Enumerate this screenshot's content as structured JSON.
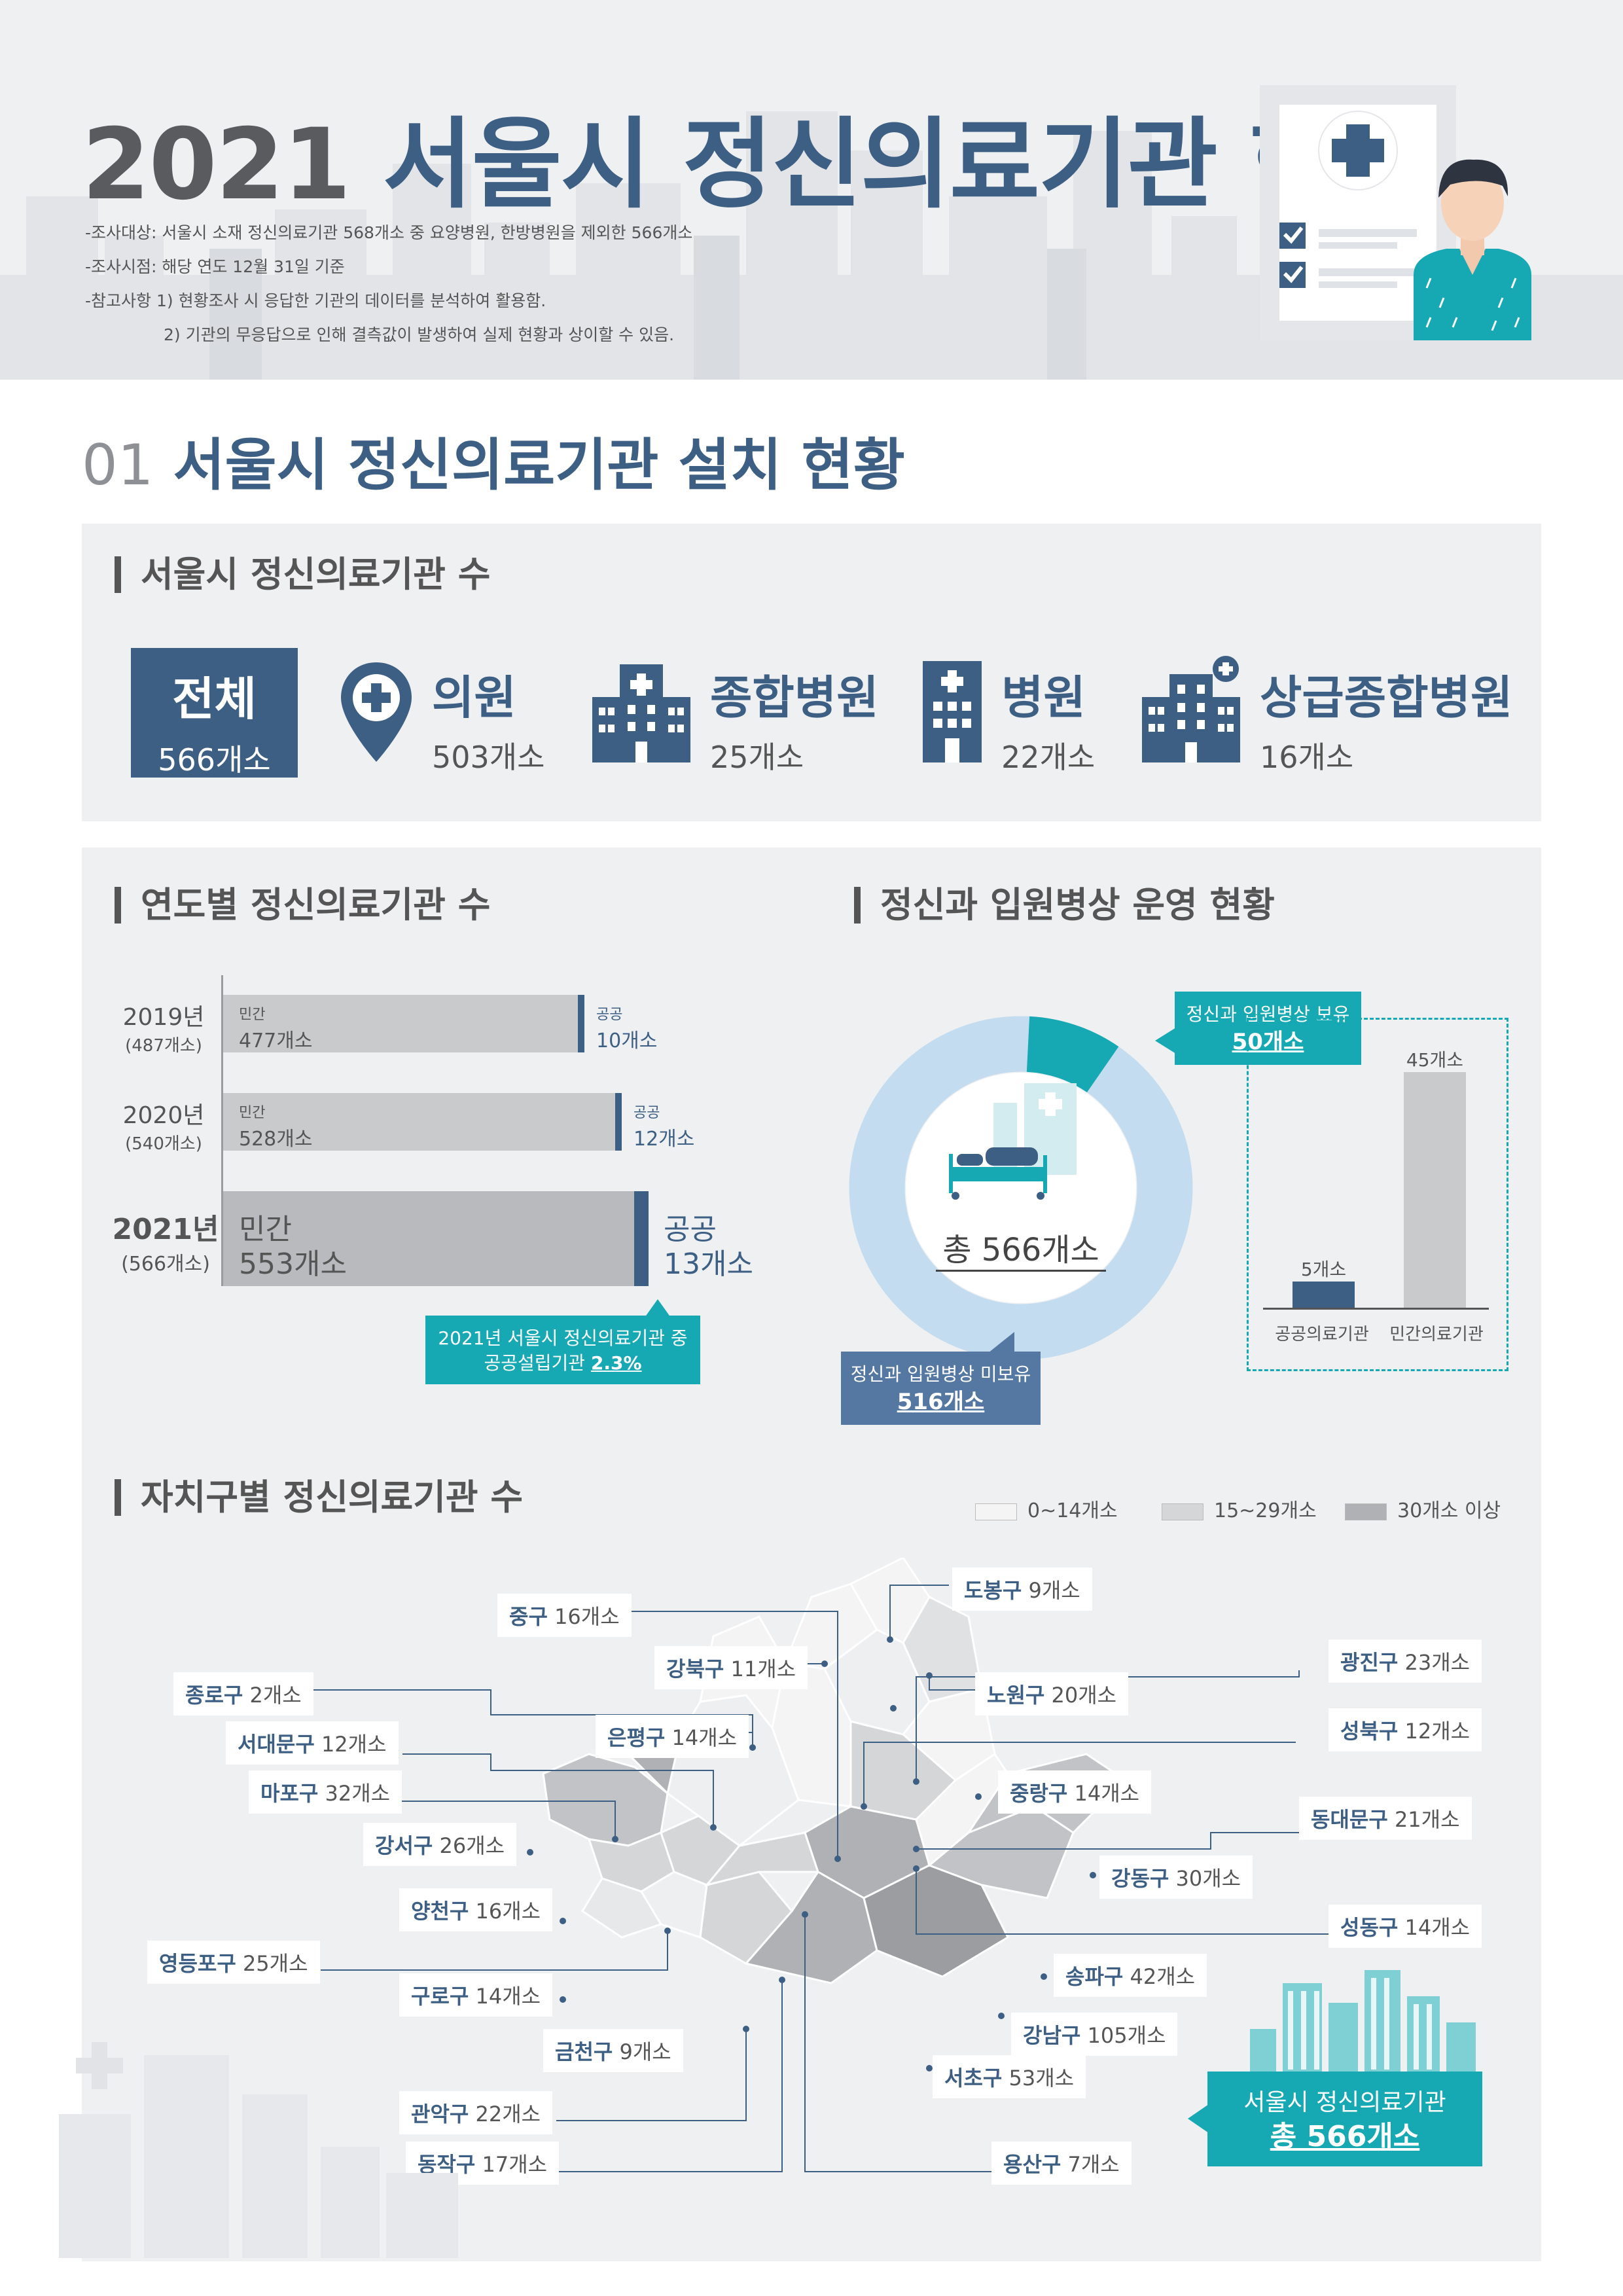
{
  "header": {
    "title_year": "2021",
    "title_main": "서울시 정신의료기관 현황",
    "notes": [
      "-조사대상: 서울시 소재 정신의료기관 568개소 중 요양병원, 한방병원을 제외한 566개소",
      "-조사시점: 해당 연도 12월 31일 기준",
      "-참고사항 1) 현황조사 시 응답한 기관의 데이터를 분석하여 활용함.",
      "2) 기관의 무응답으로 인해 결측값이 발생하여 실제 현황과 상이할 수 있음."
    ]
  },
  "section1": {
    "num": "01",
    "title": "서울시 정신의료기관 설치 현황"
  },
  "counts": {
    "heading": "서울시 정신의료기관 수",
    "total": {
      "label": "전체",
      "count": "566개소"
    },
    "categories": [
      {
        "icon": "map-pin-plus-icon",
        "label": "의원",
        "count": "503개소"
      },
      {
        "icon": "general-hospital-icon",
        "label": "종합병원",
        "count": "25개소"
      },
      {
        "icon": "hospital-icon",
        "label": "병원",
        "count": "22개소"
      },
      {
        "icon": "tertiary-hospital-icon",
        "label": "상급종합병원",
        "count": "16개소"
      }
    ]
  },
  "yearly": {
    "heading": "연도별 정신의료기관 수",
    "private_label": "민간",
    "public_label": "공공",
    "chart_data": {
      "type": "bar",
      "categories": [
        "2019년",
        "2020년",
        "2021년"
      ],
      "totals": [
        "(487개소)",
        "(540개소)",
        "(566개소)"
      ],
      "series": [
        {
          "name": "민간",
          "values": [
            477,
            528,
            553
          ],
          "labels": [
            "477개소",
            "528개소",
            "553개소"
          ]
        },
        {
          "name": "공공",
          "values": [
            10,
            12,
            13
          ],
          "labels": [
            "10개소",
            "12개소",
            "13개소"
          ]
        }
      ]
    },
    "callout_line1": "2021년 서울시 정신의료기관 중",
    "callout_line2_prefix": "공공설립기관 ",
    "callout_line2_value": "2.3%"
  },
  "beds": {
    "heading": "정신과 입원병상 운영 현황",
    "donut_center": "총 566개소",
    "donut_chart": {
      "type": "pie",
      "slices": [
        {
          "name": "정신과 입원병상 보유",
          "value": 50,
          "color": "#17a9b3"
        },
        {
          "name": "정신과 입원병상 미보유",
          "value": 516,
          "color": "#c4dcf0"
        }
      ]
    },
    "has_label": "정신과 입원병상 보유",
    "has_value": "50개소",
    "none_label": "정신과 입원병상 미보유",
    "none_value": "516개소",
    "bar_chart": {
      "type": "bar",
      "categories": [
        "공공의료기관",
        "민간의료기관"
      ],
      "values": [
        5,
        45
      ],
      "value_labels": [
        "5개소",
        "45개소"
      ],
      "colors": [
        "#3e5f84",
        "#c9cacc"
      ]
    }
  },
  "districts": {
    "heading": "자치구별 정신의료기관 수",
    "legend": [
      {
        "label": "0~14개소",
        "color": "#f4f4f4"
      },
      {
        "label": "15~29개소",
        "color": "#d5d6d8"
      },
      {
        "label": "30개소 이상",
        "color": "#b0b1b4"
      }
    ],
    "items": [
      {
        "name": "중구",
        "count": "16개소"
      },
      {
        "name": "도봉구",
        "count": "9개소"
      },
      {
        "name": "강북구",
        "count": "11개소"
      },
      {
        "name": "광진구",
        "count": "23개소"
      },
      {
        "name": "종로구",
        "count": "2개소"
      },
      {
        "name": "노원구",
        "count": "20개소"
      },
      {
        "name": "은평구",
        "count": "14개소"
      },
      {
        "name": "성북구",
        "count": "12개소"
      },
      {
        "name": "서대문구",
        "count": "12개소"
      },
      {
        "name": "마포구",
        "count": "32개소"
      },
      {
        "name": "중랑구",
        "count": "14개소"
      },
      {
        "name": "동대문구",
        "count": "21개소"
      },
      {
        "name": "강서구",
        "count": "26개소"
      },
      {
        "name": "강동구",
        "count": "30개소"
      },
      {
        "name": "양천구",
        "count": "16개소"
      },
      {
        "name": "성동구",
        "count": "14개소"
      },
      {
        "name": "영등포구",
        "count": "25개소"
      },
      {
        "name": "송파구",
        "count": "42개소"
      },
      {
        "name": "구로구",
        "count": "14개소"
      },
      {
        "name": "강남구",
        "count": "105개소"
      },
      {
        "name": "금천구",
        "count": "9개소"
      },
      {
        "name": "서초구",
        "count": "53개소"
      },
      {
        "name": "관악구",
        "count": "22개소"
      },
      {
        "name": "동작구",
        "count": "17개소"
      },
      {
        "name": "용산구",
        "count": "7개소"
      }
    ],
    "summary_line1": "서울시 정신의료기관",
    "summary_line2": "총 566개소"
  }
}
